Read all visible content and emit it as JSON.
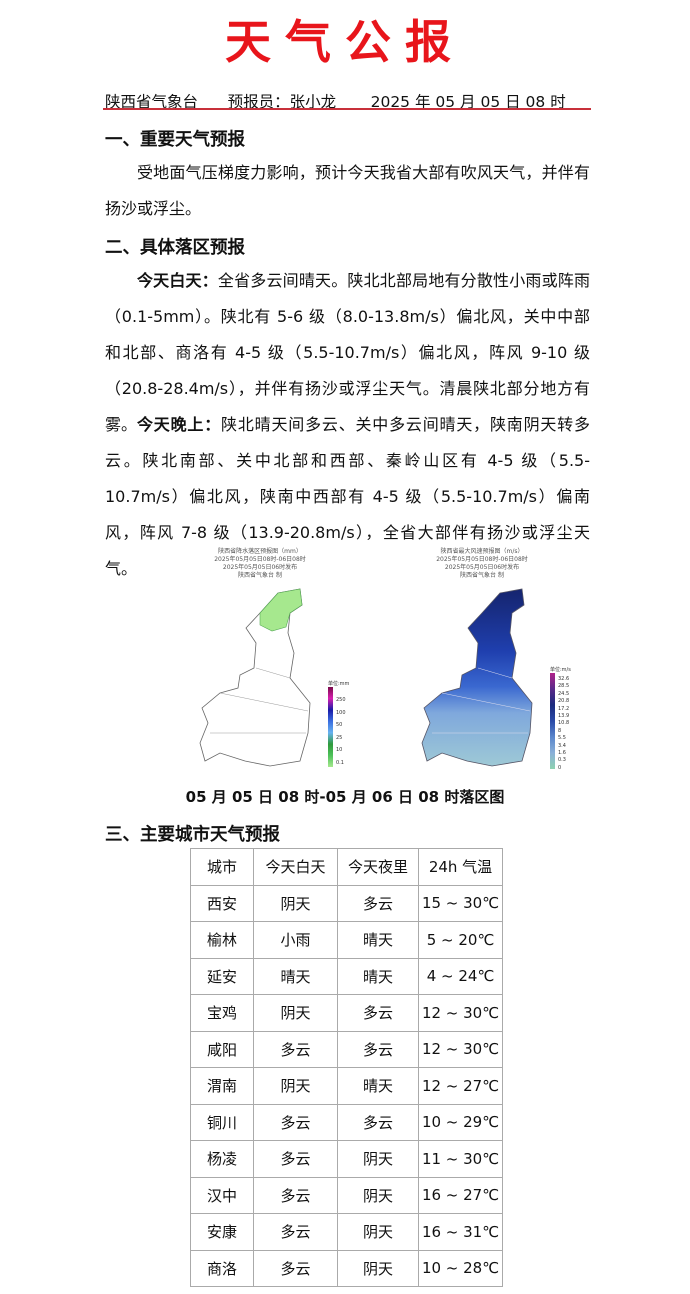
{
  "title": "天气公报",
  "header": {
    "agency": "陕西省气象台",
    "forecaster": "预报员：张小龙",
    "time": "2025 年 05 月 05 日 08 时"
  },
  "colors": {
    "title": "#e8151b",
    "rule": "#c8303a"
  },
  "section1": {
    "heading": "一、重要天气预报",
    "text": "受地面气压梯度力影响，预计今天我省大部有吹风天气，并伴有扬沙或浮尘。"
  },
  "section2": {
    "heading": "二、具体落区预报",
    "day_label": "今天白天：",
    "day_text": "全省多云间晴天。陕北北部局地有分散性小雨或阵雨（0.1-5mm）。陕北有 5-6 级（8.0-13.8m/s）偏北风，关中中部和北部、商洛有 4-5 级（5.5-10.7m/s）偏北风，阵风 9-10 级（20.8-28.4m/s），并伴有扬沙或浮尘天气。清晨陕北部分地方有雾。",
    "night_label": "今天晚上：",
    "night_text": "陕北晴天间多云、关中多云间晴天，陕南阴天转多云。陕北南部、关中北部和西部、秦岭山区有 4-5 级（5.5-10.7m/s）偏北风，陕南中西部有 4-5 级（5.5-10.7m/s）偏南风，阵风 7-8 级（13.9-20.8m/s），全省大部伴有扬沙或浮尘天气。"
  },
  "maps": {
    "rain": {
      "title": "陕西省降水落区预报图（mm）",
      "period": "2025年05月05日08时-06日08时",
      "issued": "2025年05月05日06时发布",
      "maker": "陕西省气象台 制",
      "legend_title": "单位:mm",
      "legend": [
        "250",
        "100",
        "50",
        "25",
        "10",
        "0.1"
      ],
      "legend_colors": [
        "#7a0a4a",
        "#d81fb0",
        "#1a1aa8",
        "#3a6ee0",
        "#68b2f0",
        "#2f9a3c",
        "#4ec25a",
        "#a6e88e"
      ]
    },
    "wind": {
      "title": "陕西省最大风速预报图（m/s）",
      "period": "2025年05月05日08时-06日08时",
      "issued": "2025年05月05日06时发布",
      "maker": "陕西省气象台 制",
      "legend_title": "单位:m/s",
      "legend": [
        "32.6",
        "28.5",
        "24.5",
        "20.8",
        "17.2",
        "13.9",
        "10.8",
        "8",
        "5.5",
        "3.4",
        "1.6",
        "0.3",
        "0"
      ]
    },
    "caption": "05 月 05 日 08 时-05 月 06 日 08 时落区图"
  },
  "section3": {
    "heading": "三、主要城市天气预报",
    "columns": [
      "城市",
      "今天白天",
      "今天夜里",
      "24h 气温"
    ],
    "rows": [
      [
        "西安",
        "阴天",
        "多云",
        "15 ~ 30℃"
      ],
      [
        "榆林",
        "小雨",
        "晴天",
        "5 ~ 20℃"
      ],
      [
        "延安",
        "晴天",
        "晴天",
        "4 ~ 24℃"
      ],
      [
        "宝鸡",
        "阴天",
        "多云",
        "12 ~ 30℃"
      ],
      [
        "咸阳",
        "多云",
        "多云",
        "12 ~ 30℃"
      ],
      [
        "渭南",
        "阴天",
        "晴天",
        "12 ~ 27℃"
      ],
      [
        "铜川",
        "多云",
        "多云",
        "10 ~ 29℃"
      ],
      [
        "杨凌",
        "多云",
        "阴天",
        "11 ~ 30℃"
      ],
      [
        "汉中",
        "多云",
        "阴天",
        "16 ~ 27℃"
      ],
      [
        "安康",
        "多云",
        "阴天",
        "16 ~ 31℃"
      ],
      [
        "商洛",
        "多云",
        "阴天",
        "10 ~ 28℃"
      ]
    ]
  }
}
